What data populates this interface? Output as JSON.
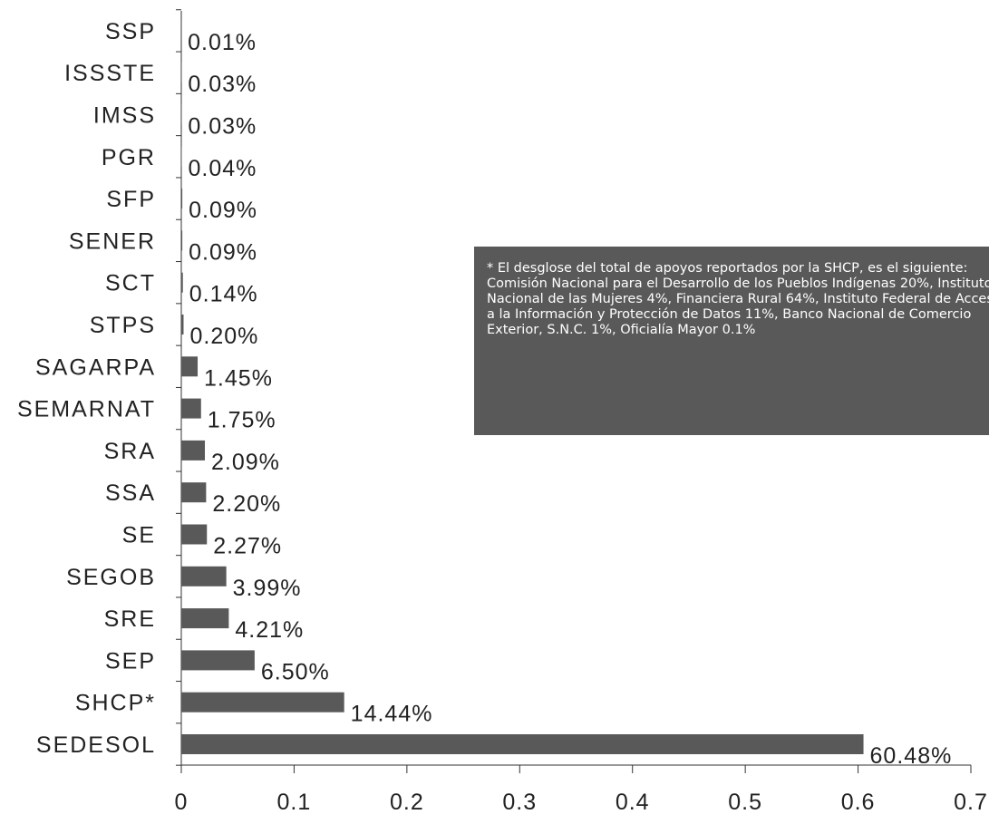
{
  "chart_data": {
    "type": "bar",
    "orientation": "horizontal",
    "categories": [
      "SEDESOL",
      "SHCP*",
      "SEP",
      "SRE",
      "SEGOB",
      "SE",
      "SSA",
      "SRA",
      "SEMARNAT",
      "SAGARPA",
      "STPS",
      "SCT",
      "SENER",
      "SFP",
      "PGR",
      "IMSS",
      "ISSSTE",
      "SSP"
    ],
    "values": [
      0.6048,
      0.1444,
      0.065,
      0.0421,
      0.0399,
      0.0227,
      0.022,
      0.0209,
      0.0175,
      0.0145,
      0.002,
      0.0014,
      0.0009,
      0.0009,
      0.0004,
      0.0003,
      0.0003,
      0.0001
    ],
    "data_labels": [
      "60.48%",
      "14.44%",
      "6.50%",
      "4.21%",
      "3.99%",
      "2.27%",
      "2.20%",
      "2.09%",
      "1.75%",
      "1.45%",
      "0.20%",
      "0.14%",
      "0.09%",
      "0.09%",
      "0.04%",
      "0.03%",
      "0.03%",
      "0.01%"
    ],
    "xlim": [
      0,
      0.7
    ],
    "xticks": [
      "0",
      "0.1",
      "0.2",
      "0.3",
      "0.4",
      "0.5",
      "0.6",
      "0.7"
    ],
    "xlabel": "",
    "ylabel": "",
    "grid": false,
    "colors": {
      "bar": "#595959",
      "axis": "#333333"
    },
    "annotation": "* El desglose del total de apoyos reportados por la SHCP, es el siguiente:\nComisión Nacional para el Desarrollo de los Pueblos Indígenas 20%, Instituto Nacional de las Mujeres 4%, Financiera Rural 64%, Instituto Federal de Acceso a la Información y Protección de Datos 11%, Banco Nacional de Comercio Exterior, S.N.C. 1%, Oficialía Mayor 0.1%"
  }
}
